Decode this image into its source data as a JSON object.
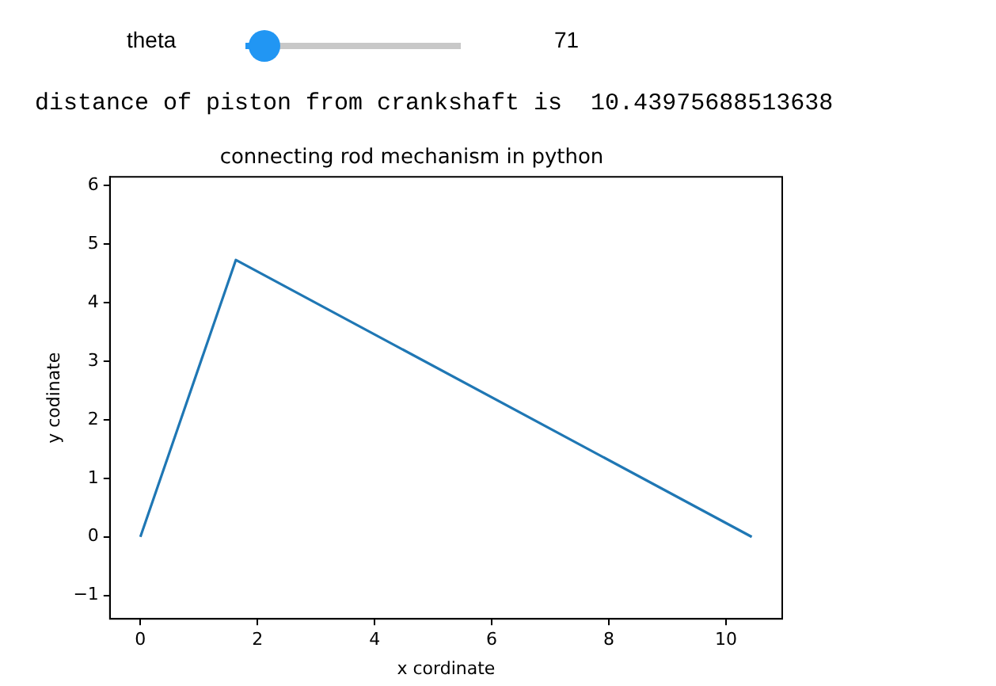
{
  "chart_data": {
    "type": "line",
    "title": "connecting rod mechanism in python",
    "xlabel": "x cordinate",
    "ylabel": "y codinate",
    "annotations": [
      "theta",
      "71",
      "distance of piston from crankshaft is  10.43975688513638"
    ],
    "x": [
      0,
      1.63,
      10.43975688513638
    ],
    "series": [
      {
        "color": "#1f77b4",
        "values": [
          0,
          4.73,
          0
        ]
      }
    ],
    "xlim": [
      -0.52,
      10.96
    ],
    "xticks": [
      0,
      2,
      4,
      6,
      8,
      10
    ],
    "ylim": [
      -1.4,
      6.15
    ],
    "yticks": [
      -1,
      0,
      1,
      2,
      3,
      4,
      5,
      6
    ],
    "grid": false,
    "legend": false,
    "marker": "none",
    "line_style": "solid"
  }
}
